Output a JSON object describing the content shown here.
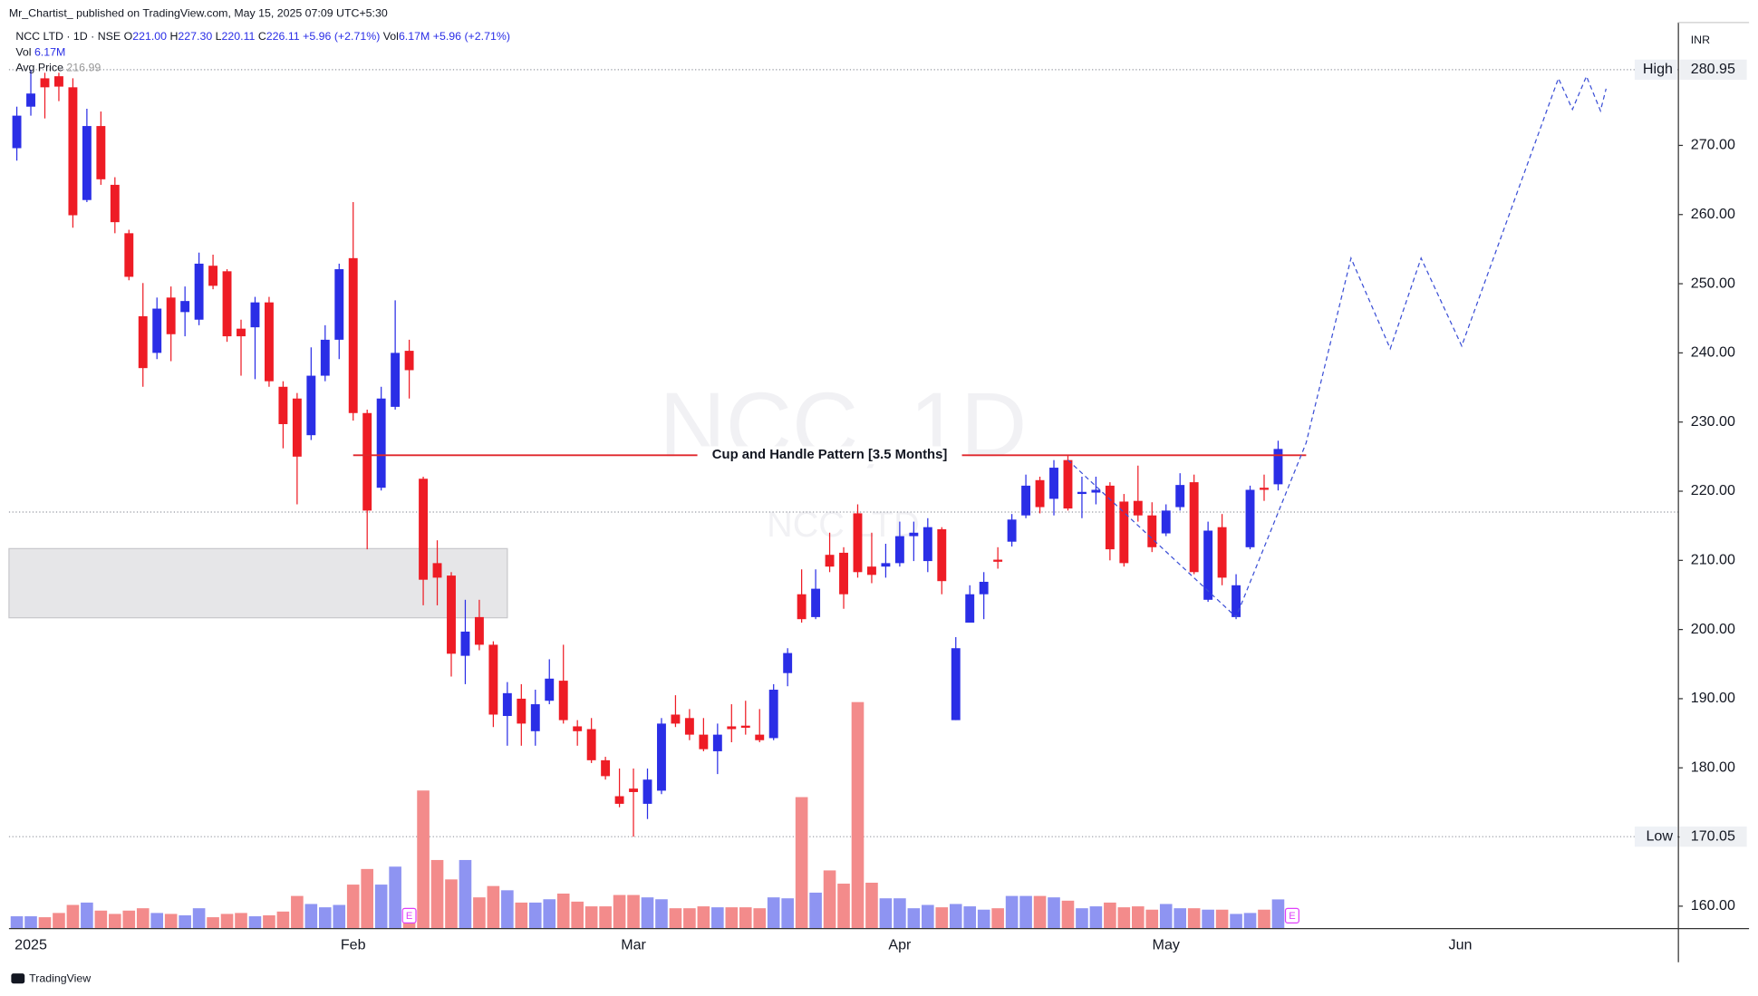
{
  "header": {
    "publisher": "Mr_Chartist_ published on TradingView.com, May 15, 2025 07:09 UTC+5:30",
    "footer": "TradingView"
  },
  "legend": {
    "symbol": "NCC LTD · 1D · NSE",
    "fields": [
      {
        "k": "O",
        "v": "221.00"
      },
      {
        "k": "H",
        "v": "227.30"
      },
      {
        "k": "L",
        "v": "220.11"
      },
      {
        "k": "C",
        "v": "226.11"
      }
    ],
    "change": "+5.96 (+2.71%)",
    "vol_label": "Vol",
    "vol": "6.17M"
  },
  "chart_data": {
    "type": "candlestick",
    "currency": "INR",
    "watermark": {
      "title": "NCC, 1D",
      "subtitle": "NCC LTD"
    },
    "categories": [
      null,
      "2025",
      null,
      null,
      null,
      null,
      null,
      null,
      null,
      null,
      null,
      null,
      null,
      null,
      null,
      null,
      null,
      null,
      null,
      null,
      null,
      null,
      null,
      null,
      "Feb",
      null,
      null,
      null,
      null,
      null,
      null,
      null,
      null,
      null,
      null,
      null,
      null,
      null,
      null,
      null,
      null,
      null,
      null,
      null,
      "Mar",
      null,
      null,
      null,
      null,
      null,
      null,
      null,
      null,
      null,
      null,
      null,
      null,
      null,
      null,
      null,
      null,
      null,
      null,
      "Apr",
      null,
      null,
      null,
      null,
      null,
      null,
      null,
      null,
      null,
      null,
      null,
      null,
      null,
      null,
      null,
      null,
      null,
      null,
      "May",
      null,
      null,
      null,
      null,
      null,
      null,
      null,
      null,
      null,
      null,
      null,
      null,
      null,
      null,
      null,
      null,
      null,
      null,
      null,
      null,
      "Jun",
      null,
      null,
      null,
      null,
      null,
      null,
      null,
      null,
      null,
      null,
      null,
      null,
      null,
      null,
      null
    ],
    "open": [
      269.6,
      275.6,
      279.7,
      280,
      278.4,
      262.1,
      272.8,
      264.3,
      257.3,
      245.3,
      240,
      248,
      245.9,
      244.8,
      252.6,
      251.8,
      243.5,
      243.7,
      247.3,
      235.1,
      233.4,
      228.1,
      236.7,
      241.9,
      253.7,
      231.3,
      220.5,
      232.2,
      240.3,
      221.8,
      209.6,
      207.8,
      196.2,
      201.8,
      197.8,
      187.5,
      190,
      185.3,
      189.7,
      192.6,
      186.0,
      185.6,
      181.1,
      175.9,
      177.0,
      174.8,
      176.7,
      187.7,
      187.2,
      184.8,
      182.4,
      186,
      186.1,
      184.8,
      184.3,
      193.7,
      205.1,
      201.8,
      210.8,
      211.1,
      216.8,
      209.1,
      209.1,
      209.6,
      213.5,
      209.9,
      214.5,
      186.9,
      201,
      205.1,
      210.1,
      212.7,
      216.5,
      221.6,
      218.9,
      224.5,
      219.6,
      219.8,
      220.8,
      218.5,
      218.6,
      216.5,
      213.9,
      217.7,
      221.3,
      204.3,
      214.8,
      201.8,
      211.9,
      220.5,
      221.0,
      null,
      null,
      null,
      null,
      null,
      null,
      null,
      null,
      null,
      null,
      null,
      null,
      null,
      null,
      null,
      null,
      null,
      null,
      null,
      null,
      null,
      null,
      null,
      null,
      null,
      null,
      null,
      null
    ],
    "high": [
      275.6,
      280.95,
      280.5,
      280.5,
      279.7,
      275.3,
      274.9,
      265.4,
      257.8,
      250.1,
      248,
      249.6,
      249.6,
      254.5,
      254.2,
      252.1,
      244.8,
      248.1,
      248.1,
      235.9,
      234.2,
      240.8,
      244,
      252.9,
      261.8,
      231.8,
      235.1,
      247.6,
      241.9,
      222.1,
      212.9,
      208.3,
      204.3,
      204.3,
      198.3,
      192.4,
      192.1,
      191.3,
      195.7,
      197.8,
      186.9,
      187.2,
      181.6,
      179.9,
      179.9,
      179.9,
      187.2,
      190.5,
      188.5,
      187.2,
      186.4,
      189.2,
      189.7,
      188.5,
      192.1,
      197.3,
      208.7,
      208.7,
      214,
      211.9,
      218.1,
      214,
      212.4,
      215.6,
      215.6,
      216.1,
      214.8,
      198.9,
      206.4,
      208.3,
      211.9,
      216.7,
      222.4,
      222.1,
      224.5,
      225.2,
      222.1,
      222.1,
      221.3,
      219.6,
      223.7,
      218.4,
      218.1,
      222.6,
      222.4,
      215.6,
      216.7,
      208,
      220.8,
      222.4,
      227.3,
      null,
      null,
      null,
      null,
      null,
      null,
      null,
      null,
      null,
      null,
      null,
      null,
      null,
      null,
      null,
      null,
      null,
      null,
      null,
      null,
      null,
      null,
      null,
      null,
      null,
      null,
      null,
      null
    ],
    "low": [
      267.8,
      274.3,
      273.9,
      276.4,
      258.1,
      261.8,
      264.3,
      257.3,
      250.5,
      235.1,
      239.1,
      238.8,
      242.4,
      244,
      249.2,
      241.6,
      236.7,
      236.2,
      235.1,
      226.2,
      218.1,
      227.4,
      235.9,
      239.1,
      230.2,
      211.6,
      220.1,
      231.8,
      233.4,
      203.5,
      203.5,
      193.2,
      192.1,
      197.0,
      185.9,
      183.2,
      183.2,
      183.2,
      189.2,
      186.4,
      183.2,
      180.7,
      178.3,
      174.3,
      170.05,
      172.6,
      176.2,
      185.9,
      184.0,
      182.4,
      179.1,
      183.7,
      184.8,
      183.7,
      184.0,
      191.8,
      201.0,
      201.5,
      208.3,
      203.0,
      207.5,
      206.7,
      207.5,
      209.1,
      209.9,
      208.3,
      205.1,
      186.9,
      201.0,
      201.5,
      208.8,
      212.0,
      216.1,
      216.8,
      216.5,
      217.2,
      216.1,
      218.1,
      210.0,
      209.1,
      215.6,
      211.2,
      213.5,
      217.2,
      208.0,
      204.0,
      206.4,
      201.5,
      211.6,
      218.6,
      220.11,
      null,
      null,
      null,
      null,
      null,
      null,
      null,
      null,
      null,
      null,
      null,
      null,
      null,
      null,
      null,
      null,
      null,
      null,
      null,
      null,
      null,
      null,
      null,
      null,
      null,
      null,
      null,
      null
    ],
    "close": [
      274.3,
      277.5,
      278.4,
      278.5,
      259.9,
      272.8,
      265.1,
      258.9,
      251,
      237.8,
      246.4,
      242.7,
      247.5,
      252.9,
      249.7,
      242.4,
      242.4,
      247.3,
      235.9,
      229.7,
      225,
      236.7,
      241.9,
      252.1,
      231.3,
      217.2,
      233.4,
      240,
      237.5,
      207.2,
      207.5,
      196.5,
      199.7,
      197.8,
      187.7,
      190.8,
      186.4,
      189.2,
      192.9,
      186.9,
      185.3,
      181.1,
      178.8,
      174.8,
      176.5,
      178.3,
      186.4,
      186.4,
      184.8,
      182.7,
      184.8,
      185.6,
      185.8,
      184,
      191.3,
      196.6,
      201.5,
      205.9,
      209.1,
      205.1,
      208.3,
      207.9,
      209.6,
      213.5,
      214,
      214.8,
      207,
      197.3,
      205.1,
      206.9,
      209.8,
      215.9,
      220.8,
      217.7,
      223.4,
      217.5,
      219.9,
      220.2,
      211.6,
      209.6,
      216.5,
      211.9,
      217.2,
      220.9,
      208.3,
      214.3,
      207.5,
      206.4,
      220.2,
      220.2,
      226.11,
      null,
      null,
      null,
      null,
      null,
      null,
      null,
      null,
      null,
      null,
      null,
      null,
      null,
      null,
      null,
      null,
      null,
      null,
      null,
      null,
      null,
      null,
      null,
      null,
      null,
      null,
      null,
      null
    ],
    "volume": [
      2.6,
      2.6,
      2.4,
      3.3,
      5.0,
      5.5,
      3.8,
      3.1,
      3.8,
      4.3,
      3.3,
      3.1,
      2.8,
      4.3,
      2.4,
      3.1,
      3.3,
      2.6,
      2.8,
      3.6,
      6.9,
      5.2,
      4.5,
      5.0,
      9.3,
      12.6,
      9.3,
      13.1,
      4.3,
      29.2,
      14.5,
      10.4,
      14.5,
      6.6,
      9.0,
      8.1,
      5.5,
      5.5,
      6.2,
      7.4,
      5.7,
      4.7,
      4.7,
      7.1,
      7.1,
      6.6,
      6.2,
      4.3,
      4.3,
      4.7,
      4.5,
      4.5,
      4.5,
      4.3,
      6.6,
      6.4,
      27.8,
      7.6,
      12.3,
      9.5,
      47.9,
      9.7,
      6.4,
      6.4,
      4.3,
      5.0,
      4.5,
      5.2,
      4.7,
      4.0,
      4.3,
      6.9,
      6.9,
      6.9,
      6.6,
      5.9,
      4.3,
      4.7,
      5.5,
      4.5,
      4.7,
      4.0,
      5.2,
      4.3,
      4.3,
      4.0,
      4.0,
      3.1,
      3.3,
      4.0,
      6.17,
      null,
      null,
      null,
      null,
      null,
      null,
      null,
      null,
      null,
      null,
      null,
      null,
      null,
      null,
      null,
      null,
      null,
      null,
      null,
      null,
      null,
      null,
      null,
      null,
      null,
      null,
      null,
      null
    ],
    "colors": {
      "up": "#2a2ee6",
      "down": "#ee1c25",
      "vol_up": "#8e94f2",
      "vol_down": "#f38b8b",
      "pattern": "#e0262b",
      "projection": "#3b4fd6",
      "zone": "#e6e6e8"
    },
    "ylim": [
      156.76,
      287.76
    ],
    "yticks": [
      {
        "value": 160,
        "label": "160.00"
      },
      {
        "value": 170,
        "label": "170.00"
      },
      {
        "value": 180,
        "label": "180.00"
      },
      {
        "value": 190,
        "label": "190.00"
      },
      {
        "value": 200,
        "label": "200.00"
      },
      {
        "value": 210,
        "label": "210.00"
      },
      {
        "value": 220,
        "label": "220.00"
      },
      {
        "value": 230,
        "label": "230.00"
      },
      {
        "value": 240,
        "label": "240.00"
      },
      {
        "value": 250,
        "label": "250.00"
      },
      {
        "value": 260,
        "label": "260.00"
      },
      {
        "value": 270,
        "label": "270.00"
      }
    ],
    "high_line": {
      "label": "High",
      "value": 280.95
    },
    "low_line": {
      "label": "Low",
      "value": 170.05
    },
    "avg_price": {
      "label": "Avg Price",
      "value": 216.99
    },
    "pattern": {
      "label": "Cup and Handle Pattern [3.5 Months]",
      "value": 225.2,
      "x": [
        24,
        92
      ]
    },
    "zone": {
      "x": [
        -0.56,
        35
      ],
      "y": [
        201.7,
        211.7
      ]
    },
    "projection": {
      "x": [
        75,
        87,
        92,
        95.2,
        98,
        100.2,
        103.1,
        110,
        111,
        112,
        113,
        113.4
      ],
      "y": [
        224.5,
        201.8,
        227,
        253.7,
        240.6,
        253.7,
        241,
        279.7,
        275.2,
        280,
        275,
        278.2
      ]
    },
    "events": {
      "labels": [
        "E",
        "E"
      ],
      "x": [
        28,
        91
      ]
    }
  }
}
